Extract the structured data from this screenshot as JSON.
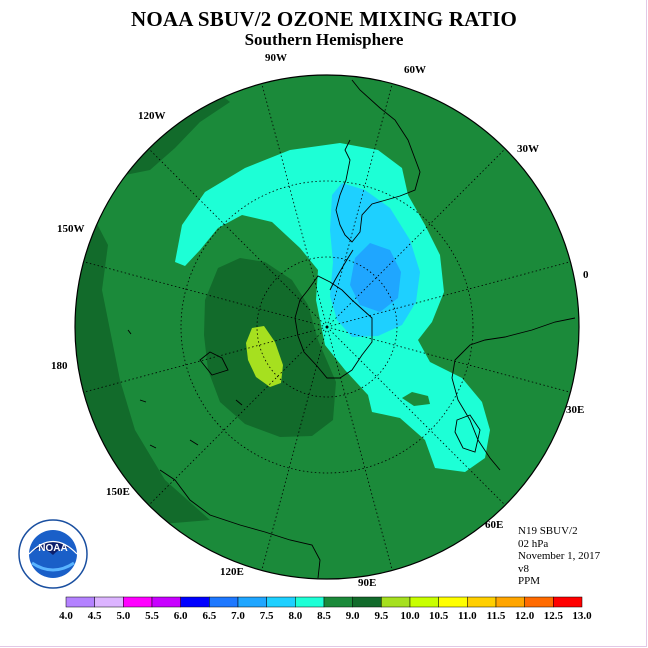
{
  "header": {
    "title": "NOAA SBUV/2 OZONE MIXING RATIO",
    "subtitle": "Southern Hemisphere"
  },
  "map": {
    "projection": "south polar stereographic",
    "longitude_labels": [
      "90W",
      "60W",
      "30W",
      "0",
      "30E",
      "60E",
      "90E",
      "120E",
      "150E",
      "180",
      "150W",
      "120W"
    ],
    "fill_colors": {
      "background": "#1b8a3a",
      "dark": "#126b2b",
      "band_7_5_8_0": "#1dffd6",
      "band_7_0_7_5": "#1ed0ff",
      "band_6_5_7_0": "#1fa6ff",
      "band_9_0_9_5": "#a6e01f",
      "coast": "#000000"
    }
  },
  "info": {
    "satellite": "N19 SBUV/2",
    "level": "02 hPa",
    "date": "November 1, 2017",
    "version": "v8",
    "units": "PPM"
  },
  "logo": {
    "text": "NOAA"
  },
  "colorbar": {
    "labels": [
      "4.0",
      "4.5",
      "5.0",
      "5.5",
      "6.0",
      "6.5",
      "7.0",
      "7.5",
      "8.0",
      "8.5",
      "9.0",
      "9.5",
      "10.0",
      "10.5",
      "11.0",
      "11.5",
      "12.0",
      "12.5",
      "13.0"
    ],
    "colors": [
      "#b482ff",
      "#dcb4ff",
      "#ff00ff",
      "#c800ff",
      "#0000ff",
      "#1e78ff",
      "#1fa6ff",
      "#1ed0ff",
      "#1dffd6",
      "#1b8a3a",
      "#126b2b",
      "#a6e01f",
      "#c8ff00",
      "#ffff00",
      "#ffcf00",
      "#ffa500",
      "#ff6a00",
      "#ff0000",
      "#a0522d"
    ]
  }
}
